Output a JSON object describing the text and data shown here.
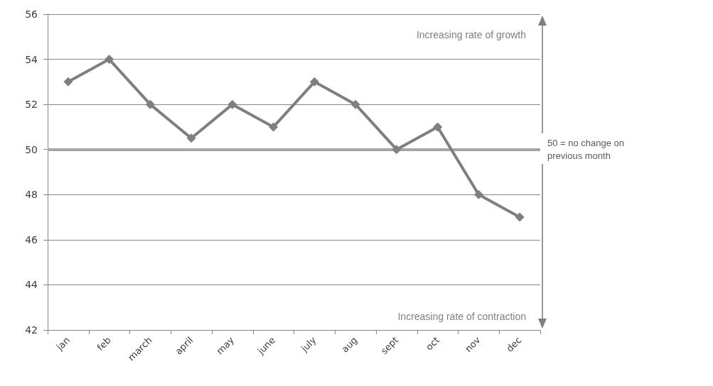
{
  "chart_data": {
    "type": "line",
    "categories": [
      "jan",
      "feb",
      "march",
      "april",
      "may",
      "june",
      "july",
      "aug",
      "sept",
      "oct",
      "nov",
      "dec"
    ],
    "series": [
      {
        "color": "#7f7f7f",
        "values": [
          53,
          54,
          52,
          50.5,
          52,
          51,
          53,
          52,
          50,
          51,
          48,
          47
        ]
      }
    ],
    "ylim": [
      42,
      56
    ],
    "yticks": [
      42,
      44,
      46,
      48,
      50,
      52,
      54,
      56
    ],
    "grid": "y",
    "marker": "diamond",
    "line_style": "solid",
    "ref_lines": [
      {
        "axis": "y",
        "value": 50,
        "label": "50 = no change on previous month",
        "color": "#a6a6a6"
      }
    ],
    "annotations": [
      "Increasing rate of growth",
      "Increasing rate of contraction"
    ]
  }
}
